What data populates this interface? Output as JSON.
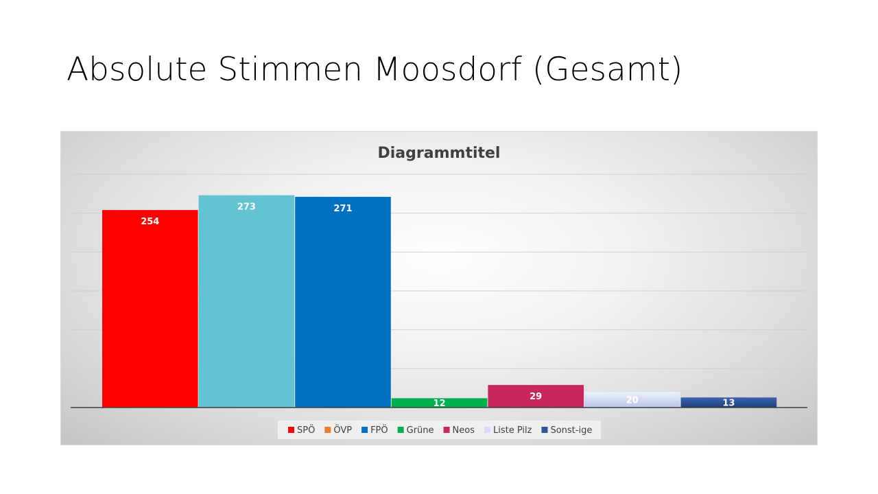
{
  "slide": {
    "title": "Absolute Stimmen Moosdorf (Gesamt)"
  },
  "chart_data": {
    "type": "bar",
    "title": "Diagrammtitel",
    "xlabel": "",
    "ylabel": "",
    "ylim": [
      0,
      300
    ],
    "gridlines": true,
    "grid_step": 50,
    "legend_position": "bottom",
    "data_labels": true,
    "series": [
      {
        "name": "SPÖ",
        "value": 254,
        "color": "#ff0000"
      },
      {
        "name": "ÖVP",
        "value": 273,
        "color": "#63c3d1",
        "legend_color": "#ed7d31"
      },
      {
        "name": "FPÖ",
        "value": 271,
        "color": "#0070c0"
      },
      {
        "name": "Grüne",
        "value": 12,
        "color": "#00b050"
      },
      {
        "name": "Neos",
        "value": 29,
        "color": "#c8265f"
      },
      {
        "name": "Liste Pilz",
        "value": 20,
        "color": "#d6dcf5"
      },
      {
        "name": "Sonst-ige",
        "value": 13,
        "color": "#2f5597"
      }
    ]
  }
}
